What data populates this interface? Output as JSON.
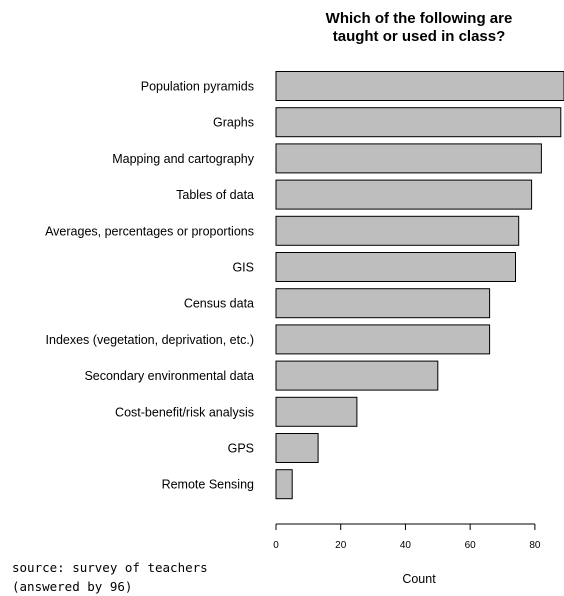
{
  "chart_data": {
    "type": "bar",
    "orientation": "horizontal",
    "title": [
      "Which of the following are",
      "taught or used in class?"
    ],
    "xlabel": "Count",
    "ylabel": "",
    "categories": [
      "Population pyramids",
      "Graphs",
      "Mapping and cartography",
      "Tables of data",
      "Averages, percentages or proportions",
      "GIS",
      "Census data",
      "Indexes (vegetation, deprivation, etc.)",
      "Secondary environmental data",
      "Cost-benefit/risk analysis",
      "GPS",
      "Remote Sensing"
    ],
    "values": [
      89,
      88,
      82,
      79,
      75,
      74,
      66,
      66,
      50,
      25,
      13,
      5
    ],
    "xlim": [
      0,
      89
    ],
    "xticks": [
      0,
      20,
      40,
      60,
      80
    ],
    "grid": false,
    "bar_color": "#bebebe",
    "bar_edge_color": "#000000"
  },
  "source": {
    "line1": "source: survey of teachers",
    "line2": "(answered by 96)"
  }
}
